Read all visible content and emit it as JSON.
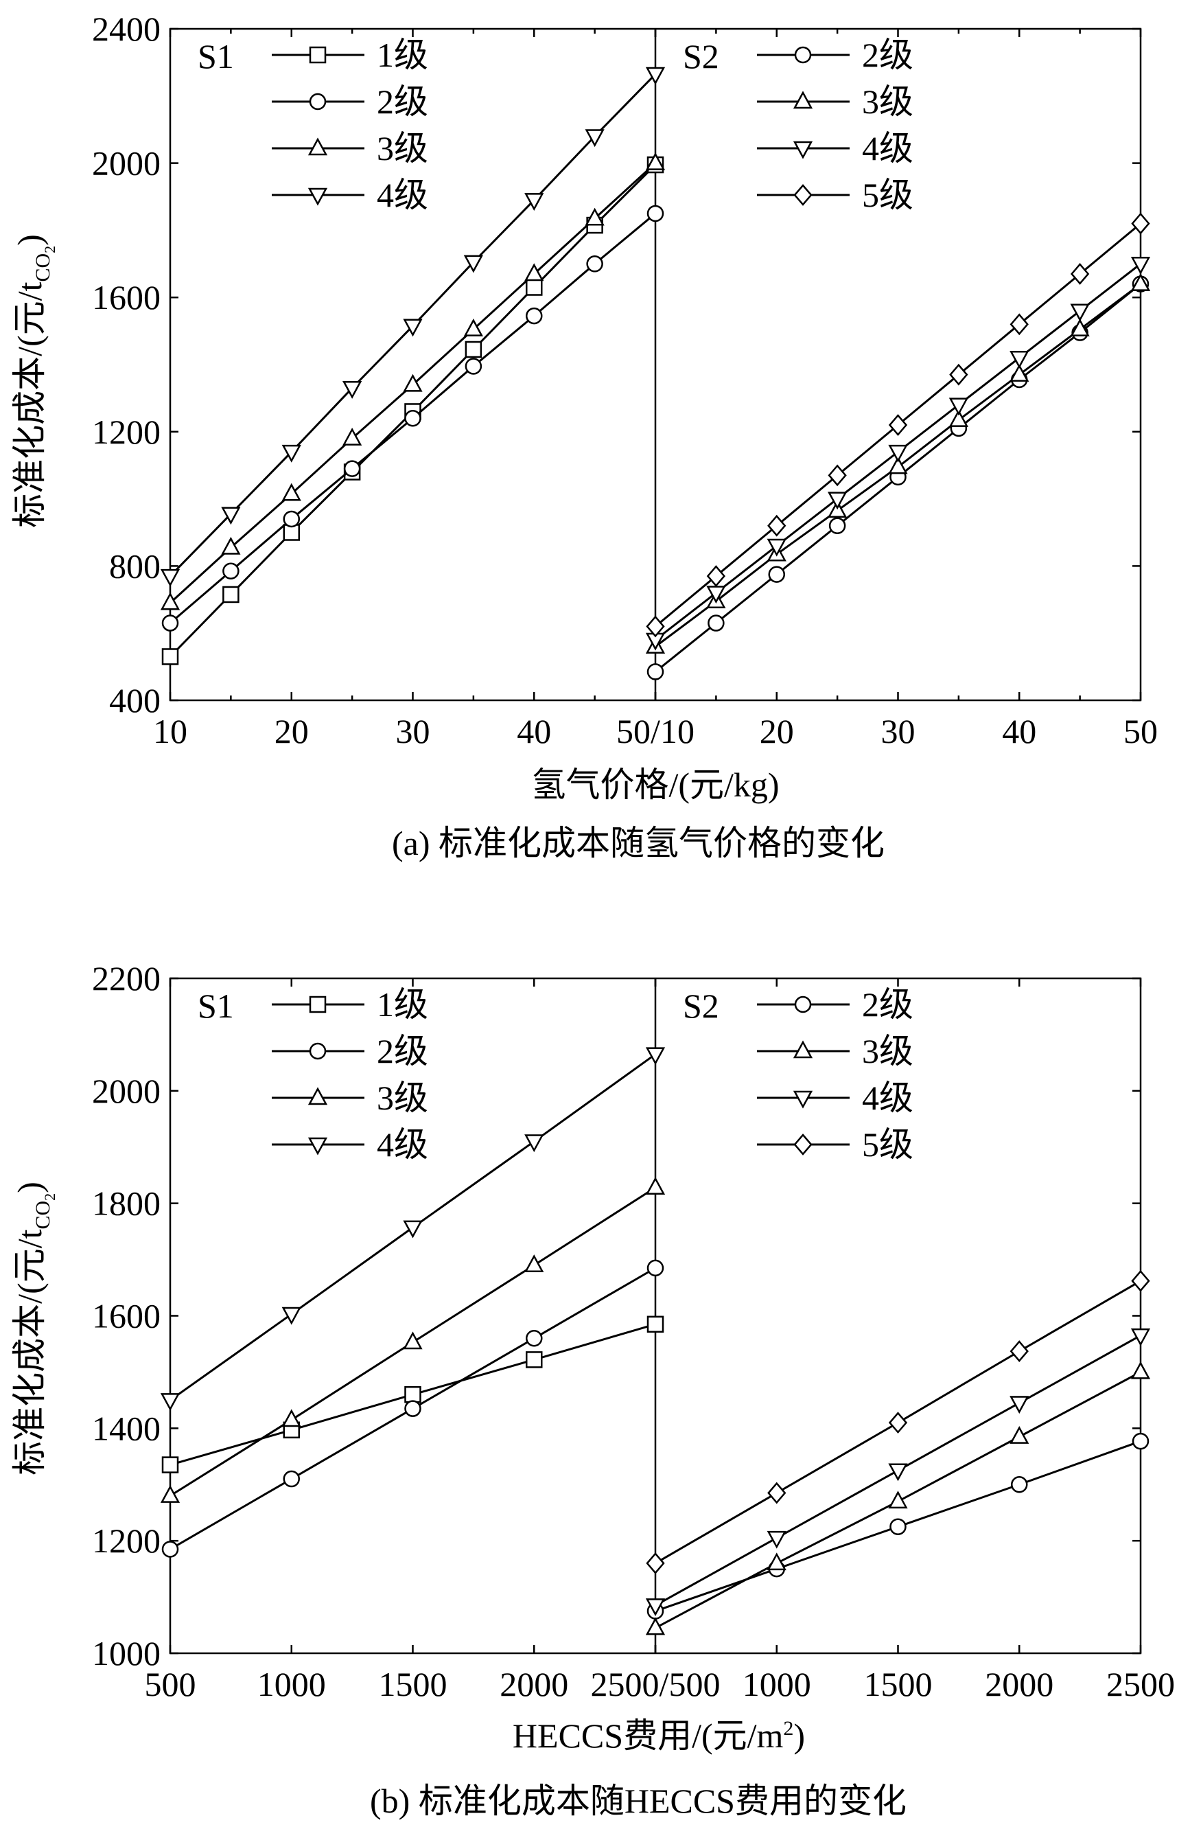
{
  "chart_data": [
    {
      "type": "line",
      "caption": "(a) 标准化成本随氢气价格的变化",
      "xlabel": "氢气价格/(元/kg)",
      "ylabel_main": "标准化成本/(元/t",
      "ylabel_sub": "CO",
      "ylabel_subsub": "2",
      "ylabel_close": ")",
      "ylim": [
        400,
        2400
      ],
      "yticks": [
        400,
        800,
        1200,
        1600,
        2000,
        2400
      ],
      "xtick_labels": [
        "10",
        "20",
        "30",
        "40",
        "50/10",
        "20",
        "30",
        "40",
        "50"
      ],
      "panels": [
        {
          "label": "S1",
          "xlim": [
            10,
            50
          ],
          "x": [
            10,
            15,
            20,
            25,
            30,
            35,
            40,
            45,
            50
          ],
          "series": [
            {
              "name": "1级",
              "marker": "square",
              "values": [
                530,
                715,
                900,
                1080,
                1260,
                1445,
                1630,
                1815,
                1995
              ]
            },
            {
              "name": "2级",
              "marker": "circle",
              "values": [
                630,
                785,
                940,
                1090,
                1240,
                1395,
                1545,
                1700,
                1850
              ]
            },
            {
              "name": "3级",
              "marker": "triangle-up",
              "values": [
                690,
                855,
                1015,
                1180,
                1340,
                1505,
                1670,
                1835,
                2000
              ]
            },
            {
              "name": "4级",
              "marker": "triangle-down",
              "values": [
                770,
                955,
                1140,
                1330,
                1515,
                1705,
                1890,
                2080,
                2265
              ]
            }
          ]
        },
        {
          "label": "S2",
          "xlim": [
            10,
            50
          ],
          "x": [
            10,
            15,
            20,
            25,
            30,
            35,
            40,
            45,
            50
          ],
          "series": [
            {
              "name": "2级",
              "marker": "circle",
              "values": [
                485,
                630,
                775,
                920,
                1065,
                1210,
                1355,
                1495,
                1640
              ]
            },
            {
              "name": "3级",
              "marker": "triangle-up",
              "values": [
                560,
                695,
                835,
                965,
                1095,
                1235,
                1370,
                1505,
                1640
              ]
            },
            {
              "name": "4级",
              "marker": "triangle-down",
              "values": [
                580,
                720,
                860,
                1000,
                1140,
                1280,
                1420,
                1560,
                1700
              ]
            },
            {
              "name": "5级",
              "marker": "diamond",
              "values": [
                620,
                770,
                920,
                1070,
                1220,
                1370,
                1520,
                1670,
                1820
              ]
            }
          ]
        }
      ]
    },
    {
      "type": "line",
      "caption": "(b) 标准化成本随HECCS费用的变化",
      "xlabel": "HECCS费用/(元/m",
      "xlabel_sup": "2",
      "xlabel_close": ")",
      "ylabel_main": "标准化成本/(元/t",
      "ylabel_sub": "CO",
      "ylabel_subsub": "2",
      "ylabel_close": ")",
      "ylim": [
        1000,
        2200
      ],
      "yticks": [
        1000,
        1200,
        1400,
        1600,
        1800,
        2000,
        2200
      ],
      "xtick_labels": [
        "500",
        "1000",
        "1500",
        "2000",
        "2500/500",
        "1000",
        "1500",
        "2000",
        "2500"
      ],
      "panels": [
        {
          "label": "S1",
          "xlim": [
            500,
            2500
          ],
          "x": [
            500,
            1000,
            1500,
            2000,
            2500
          ],
          "series": [
            {
              "name": "1级",
              "marker": "square",
              "values": [
                1335,
                1397,
                1460,
                1522,
                1585
              ]
            },
            {
              "name": "2级",
              "marker": "circle",
              "values": [
                1185,
                1310,
                1435,
                1560,
                1685
              ]
            },
            {
              "name": "3级",
              "marker": "triangle-up",
              "values": [
                1280,
                1415,
                1553,
                1690,
                1828
              ]
            },
            {
              "name": "4级",
              "marker": "triangle-down",
              "values": [
                1450,
                1603,
                1757,
                1910,
                2065
              ]
            }
          ]
        },
        {
          "label": "S2",
          "xlim": [
            500,
            2500
          ],
          "x": [
            500,
            1000,
            1500,
            2000,
            2500
          ],
          "series": [
            {
              "name": "2级",
              "marker": "circle",
              "values": [
                1075,
                1150,
                1225,
                1300,
                1377
              ]
            },
            {
              "name": "3级",
              "marker": "triangle-up",
              "values": [
                1045,
                1160,
                1270,
                1385,
                1500
              ]
            },
            {
              "name": "4级",
              "marker": "triangle-down",
              "values": [
                1085,
                1205,
                1325,
                1445,
                1565
              ]
            },
            {
              "name": "5级",
              "marker": "diamond",
              "values": [
                1160,
                1285,
                1410,
                1537,
                1662
              ]
            }
          ]
        }
      ]
    }
  ]
}
